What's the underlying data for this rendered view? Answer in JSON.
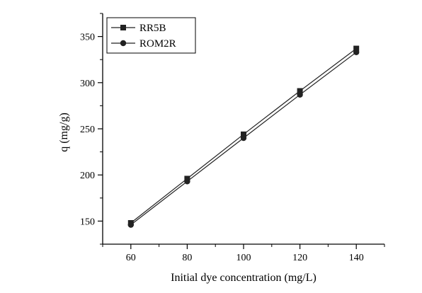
{
  "chart_data": {
    "type": "line",
    "title": "",
    "xlabel": "Initial dye concentration (mg/L)",
    "ylabel": "q (mg/g)",
    "xlim": [
      50,
      150
    ],
    "ylim": [
      125,
      375
    ],
    "x_ticks": [
      60,
      80,
      100,
      120,
      140
    ],
    "y_ticks": [
      150,
      200,
      250,
      300,
      350
    ],
    "grid": false,
    "legend_position": "top-left",
    "x": [
      60,
      80,
      100,
      120,
      140
    ],
    "series": [
      {
        "name": "RR5B",
        "marker": "square",
        "color": "#222222",
        "values": [
          148,
          196,
          244,
          291,
          337
        ]
      },
      {
        "name": "ROM2R",
        "marker": "circle",
        "color": "#222222",
        "values": [
          146,
          193,
          240,
          287,
          333
        ]
      }
    ]
  }
}
